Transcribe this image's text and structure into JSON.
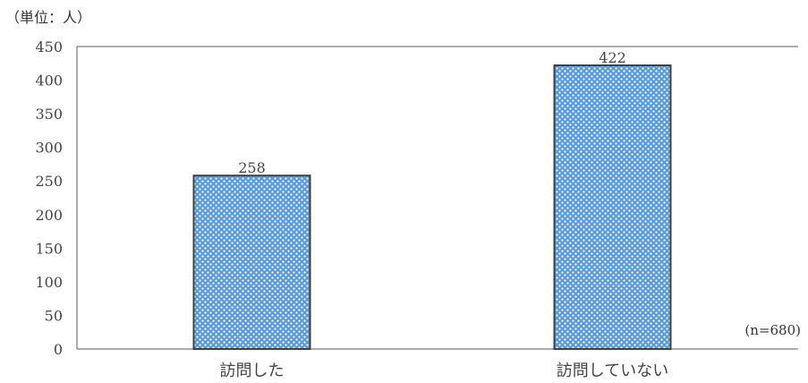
{
  "chart_data": {
    "type": "bar",
    "unit_label": "（単位：人）",
    "sample_note": "(n=680)",
    "categories": [
      "訪問した",
      "訪問していない"
    ],
    "values": [
      258,
      422
    ],
    "data_labels": [
      "258",
      "422"
    ],
    "ylim": [
      0,
      450
    ],
    "yticks": [
      0,
      50,
      100,
      150,
      200,
      250,
      300,
      350,
      400,
      450
    ],
    "grid": false,
    "bar_pattern": "blue-white checkered",
    "colors": {
      "bar_fill": "#5b9bd5",
      "bar_pattern_light": "#ffffff",
      "bar_border": "#404040",
      "axis": "#595959"
    }
  }
}
